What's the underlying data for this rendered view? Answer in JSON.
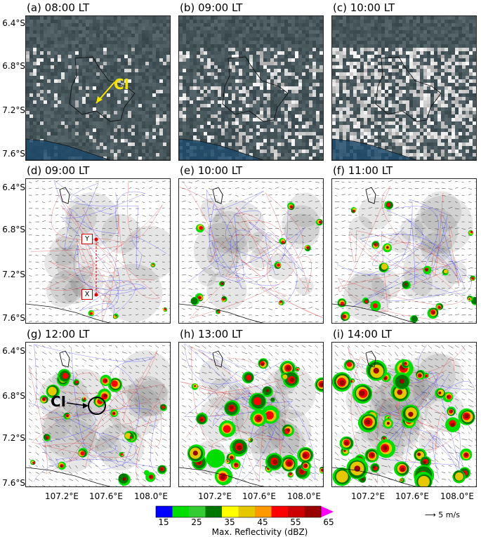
{
  "panels": [
    {
      "label": "(a) 08:00 LT",
      "kind": "satellite",
      "cloud": 0.25
    },
    {
      "label": "(b) 09:00 LT",
      "kind": "satellite",
      "cloud": 0.5
    },
    {
      "label": "(c) 10:00 LT",
      "kind": "satellite",
      "cloud": 0.8
    },
    {
      "label": "(d) 09:00 LT",
      "kind": "radar",
      "level": 0.1
    },
    {
      "label": "(e) 10:00 LT",
      "kind": "radar",
      "level": 0.25
    },
    {
      "label": "(f) 11:00 LT",
      "kind": "radar",
      "level": 0.4
    },
    {
      "label": "(g) 12:00 LT",
      "kind": "radar",
      "level": 0.55
    },
    {
      "label": "(h) 13:00 LT",
      "kind": "radar",
      "level": 0.75
    },
    {
      "label": "(i) 14:00 LT",
      "kind": "radar",
      "level": 0.9
    }
  ],
  "ci_label": "CI",
  "section_points": {
    "y": "Y",
    "x": "X"
  },
  "y_ticks": [
    "6.4°S",
    "6.8°S",
    "7.2°S",
    "7.6°S"
  ],
  "x_ticks": [
    "107.2°E",
    "107.6°E",
    "108.0°E"
  ],
  "colorbar": {
    "ticks": [
      "15",
      "25",
      "35",
      "45",
      "55",
      "65"
    ],
    "title": "Max. Reflectivity (dBZ)",
    "colors": [
      "#0000ff",
      "#00dd00",
      "#33cc33",
      "#007700",
      "#ffff00",
      "#e6c800",
      "#ff9900",
      "#ff0000",
      "#cc0000",
      "#990000",
      "#ff00ff"
    ]
  },
  "wind_scale": "5 m/s"
}
